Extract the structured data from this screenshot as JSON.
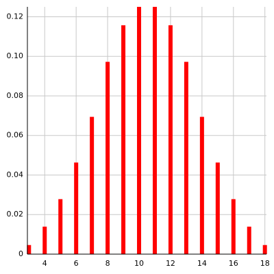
{
  "chart_data": {
    "type": "bar",
    "x": [
      3,
      4,
      5,
      6,
      7,
      8,
      9,
      10,
      11,
      12,
      13,
      14,
      15,
      16,
      17,
      18
    ],
    "values": [
      0.0046,
      0.0139,
      0.0278,
      0.0463,
      0.0694,
      0.0972,
      0.1157,
      0.125,
      0.125,
      0.1157,
      0.0972,
      0.0694,
      0.0463,
      0.0278,
      0.0139,
      0.0046
    ],
    "color": "#ff0000",
    "xlim": [
      2.9,
      18.1
    ],
    "xticks": [
      4,
      6,
      8,
      10,
      12,
      14,
      16,
      18
    ],
    "ylim": [
      0,
      0.125
    ],
    "yticks": [
      0,
      0.02,
      0.04,
      0.06,
      0.08,
      {
        "value": 0.1,
        "label": "0.10"
      },
      0.12
    ],
    "grid": true
  }
}
